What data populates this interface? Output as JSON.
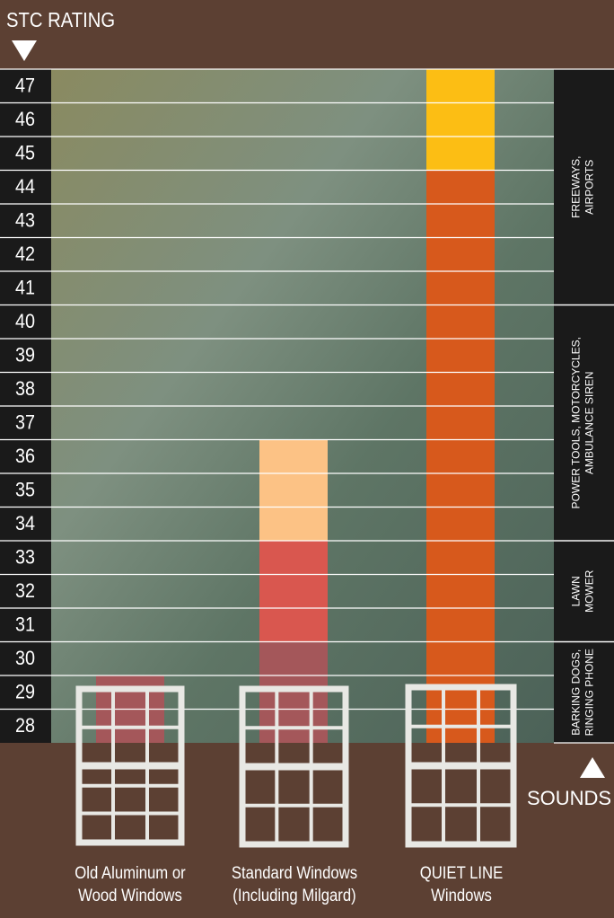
{
  "chart_data": {
    "type": "stacked-bar",
    "title": "STC RATING",
    "sounds_title": "SOUNDS",
    "ylim": [
      27,
      47
    ],
    "yticks": [
      47,
      46,
      45,
      44,
      43,
      42,
      41,
      40,
      39,
      38,
      37,
      36,
      35,
      34,
      33,
      32,
      31,
      30,
      29,
      28
    ],
    "grid": true,
    "categories": [
      [
        "Old Aluminum or",
        "Wood Windows"
      ],
      [
        "Standard Windows",
        "(Including Milgard)"
      ],
      [
        "QUIET LINE",
        "Windows"
      ]
    ],
    "bars": [
      {
        "segments": [
          {
            "value": 2,
            "color": "#a4575a"
          }
        ]
      },
      {
        "segments": [
          {
            "value": 3,
            "color": "#a4575a"
          },
          {
            "value": 3,
            "color": "#d9574f"
          },
          {
            "value": 3,
            "color": "#fcc285"
          }
        ]
      },
      {
        "segments": [
          {
            "value": 17,
            "color": "#d7591c"
          },
          {
            "value": 3,
            "color": "#fcbe14"
          }
        ]
      }
    ],
    "sounds": [
      {
        "lines": [
          "FREEWAYS,",
          "AIRPORTS"
        ],
        "range": [
          40,
          47
        ]
      },
      {
        "lines": [
          "POWER TOOLS, MOTORCYCLES,",
          "AMBULANCE SIREN"
        ],
        "range": [
          33,
          40
        ]
      },
      {
        "lines": [
          "LAWN",
          "MOWER"
        ],
        "range": [
          30,
          33
        ]
      },
      {
        "lines": [
          "BARKING DOGS,",
          "RINGING PHONE"
        ],
        "range": [
          27,
          30
        ]
      }
    ]
  }
}
